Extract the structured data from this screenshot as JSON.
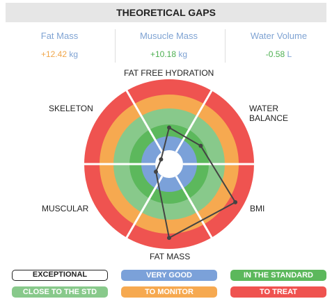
{
  "header": {
    "title": "THEORETICAL GAPS"
  },
  "metrics": [
    {
      "label": "Fat Mass",
      "value": "+12.42",
      "unit": "kg",
      "color": "#f0a64a"
    },
    {
      "label": "Musucle Mass",
      "value": "+10.18",
      "unit": "kg",
      "color": "#4caf50"
    },
    {
      "label": "Water Volume",
      "value": "-0.58",
      "unit": "L",
      "color": "#4caf50"
    }
  ],
  "chart_data": {
    "type": "radar",
    "categories": [
      "FAT FREE HYDRATION",
      "WATER BALANCE",
      "BMI",
      "FAT MASS",
      "MUSCULAR",
      "SKELETON"
    ],
    "values": [
      43,
      43,
      90,
      87,
      18,
      11
    ],
    "rlim": [
      0,
      100
    ],
    "color": "#444444"
  },
  "legend": [
    {
      "label": "EXCEPTIONAL",
      "color": "#ffffff"
    },
    {
      "label": "VERY GOOD",
      "color": "#7ba1d9"
    },
    {
      "label": "IN THE STANDARD",
      "color": "#5cb85c"
    },
    {
      "label": "CLOSE TO THE STD",
      "color": "#88c98b"
    },
    {
      "label": "TO MONITOR",
      "color": "#f6a950"
    },
    {
      "label": "TO TREAT",
      "color": "#ef5350"
    }
  ]
}
